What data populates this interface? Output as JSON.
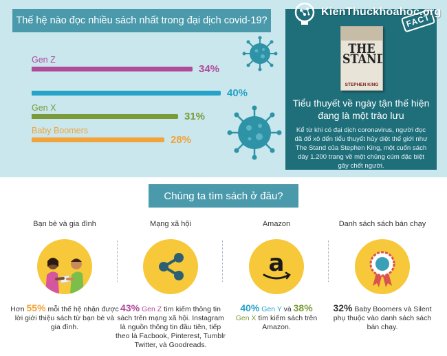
{
  "top": {
    "question": "Thế hệ nào đọc nhiều sách nhất trong đại dịch covid-19?"
  },
  "generations": [
    {
      "label": "Gen Z",
      "percent": 34,
      "percent_text": "34%",
      "color": "#b04a9a"
    },
    {
      "label": "",
      "percent": 40,
      "percent_text": "40%",
      "color": "#27a2c9"
    },
    {
      "label": "Gen X",
      "percent": 31,
      "percent_text": "31%",
      "color": "#7b9a3a"
    },
    {
      "label": "Baby Boomers",
      "percent": 28,
      "percent_text": "28%",
      "color": "#f2a33a"
    }
  ],
  "info": {
    "book_title_line1": "THE",
    "book_title_line2": "STAND",
    "book_author": "STEPHEN KING",
    "stamp": "FACT",
    "title": "Tiểu thuyết về ngày tận thế hiện đang là một trào lưu",
    "body": "Kể từ khi có đại dịch coronavirus, người đọc đã đổ xô đến tiểu thuyết hủy diệt thế giới như The Stand của Stephen King, một cuốn sách dày 1.200 trang về một chủng cúm đặc biệt gây chết người."
  },
  "logo": {
    "text": "KienThuckhoahoc.org"
  },
  "section": {
    "title": "Chúng ta tìm sách ở đâu?"
  },
  "sources": [
    {
      "title": "Bạn bè và gia đình",
      "icon": "people-sharing-book-icon",
      "pre": "Hơn ",
      "highlight": "55%",
      "text": " mỗi thế hệ nhận được lời giới thiệu sách từ bạn bè và gia đình."
    },
    {
      "title": "Mạng xã hội",
      "icon": "share-icon",
      "highlight": "43%",
      "gen": " Gen Z",
      "text": " tìm kiếm thông tin sách trên mạng xã hội. Instagram là nguồn thông tin đầu tiên, tiếp theo là Facbook, Pinterest, Tumblr Twitter, và Goodreads."
    },
    {
      "title": "Amazon",
      "icon": "amazon-logo-icon",
      "highlight1": "40%",
      "gen1": " Gen Y",
      "mid": " và ",
      "highlight2": "38%",
      "gen2": "Gen X",
      "text": " tìm kiếm sách trên Amazon."
    },
    {
      "title": "Danh sách sách bán chạy",
      "icon": "award-ribbon-icon",
      "highlight": "32%",
      "text": " Baby Boomers và Silent phụ thuộc vào danh sách sách bán chạy."
    }
  ]
}
